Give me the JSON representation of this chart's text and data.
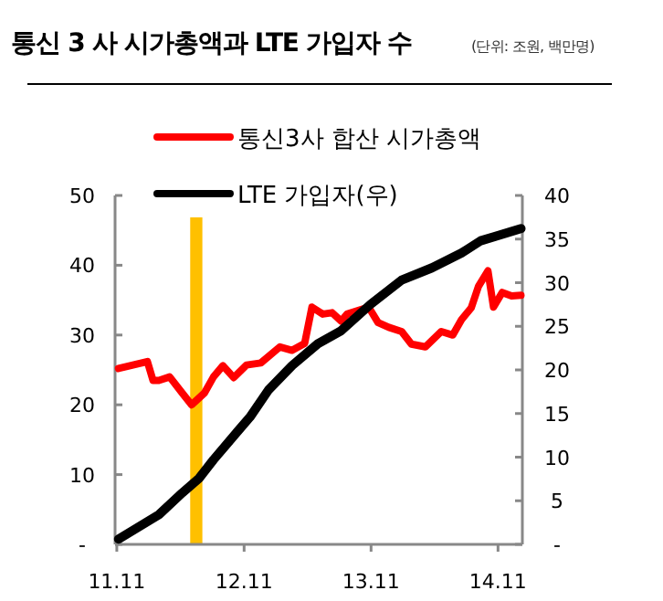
{
  "chart_data": {
    "type": "line",
    "title": "통신 3 사 시가총액과 LTE 가입자 수",
    "subtitle": "(단위: 조원, 백만명)",
    "legend": "top",
    "grid": false,
    "xlim": [
      "2011-10-27",
      "2015-01-10"
    ],
    "xticks": [
      {
        "value": "2011-11-01",
        "label": "11.11"
      },
      {
        "value": "2012-11-01",
        "label": "12.11"
      },
      {
        "value": "2013-11-01",
        "label": "13.11"
      },
      {
        "value": "2014-11-01",
        "label": "14.11"
      }
    ],
    "ylim": [
      0,
      50
    ],
    "yticks": [
      {
        "value": 0,
        "label": "-"
      },
      10,
      20,
      30,
      40,
      50
    ],
    "y2lim": [
      0,
      40
    ],
    "y2ticks": [
      {
        "value": 0,
        "label": "-"
      },
      5,
      10,
      15,
      20,
      25,
      30,
      35,
      40
    ],
    "bands": [
      {
        "axis": "x",
        "from": "2012-05-30",
        "to": "2012-07-04",
        "color": "#ffc000"
      }
    ],
    "series": [
      {
        "name": "통신3사 합산 시가총액",
        "color": "#ff0000",
        "x": [
          "2011-11-06",
          "2012-01-28",
          "2012-02-13",
          "2012-03-01",
          "2012-04-01",
          "2012-05-07",
          "2012-06-03",
          "2012-07-10",
          "2012-08-05",
          "2012-09-01",
          "2012-10-02",
          "2012-11-08",
          "2012-12-19",
          "2013-02-12",
          "2013-03-19",
          "2013-04-24",
          "2013-05-15",
          "2013-06-15",
          "2013-07-12",
          "2013-08-07",
          "2013-08-24",
          "2013-10-25",
          "2013-11-21",
          "2013-12-22",
          "2014-01-28",
          "2014-02-25",
          "2014-04-06",
          "2014-05-22",
          "2014-06-24",
          "2014-07-19",
          "2014-08-16",
          "2014-09-06",
          "2014-10-03",
          "2014-10-19",
          "2014-11-13",
          "2014-12-10",
          "2015-01-06"
        ],
        "values": [
          25.2,
          26.2,
          23.5,
          23.5,
          24,
          21.7,
          20,
          21.7,
          24,
          25.6,
          23.9,
          25.7,
          26,
          28.3,
          27.8,
          28.8,
          34,
          33,
          33.2,
          32,
          33,
          34,
          31.8,
          31.1,
          30.5,
          28.7,
          28.3,
          30.5,
          30,
          32.2,
          33.9,
          37,
          39.2,
          34,
          36.1,
          35.6,
          35.7
        ]
      },
      {
        "name": "LTE 가입자(우)",
        "color": "#000000",
        "axis": "y2",
        "x": [
          "2011-11-06",
          "2012-03-01",
          "2012-05-07",
          "2012-06-25",
          "2012-08-05",
          "2012-09-25",
          "2012-11-18",
          "2013-01-10",
          "2013-03-19",
          "2013-06-01",
          "2013-08-07",
          "2013-10-30",
          "2014-01-28",
          "2014-04-25",
          "2014-07-19",
          "2014-09-12",
          "2015-01-06"
        ],
        "values": [
          0.6,
          3.4,
          5.9,
          7.6,
          9.7,
          12.1,
          14.6,
          17.7,
          20.5,
          23,
          24.5,
          27.5,
          30.3,
          31.7,
          33.4,
          34.8,
          36.2
        ]
      }
    ]
  }
}
